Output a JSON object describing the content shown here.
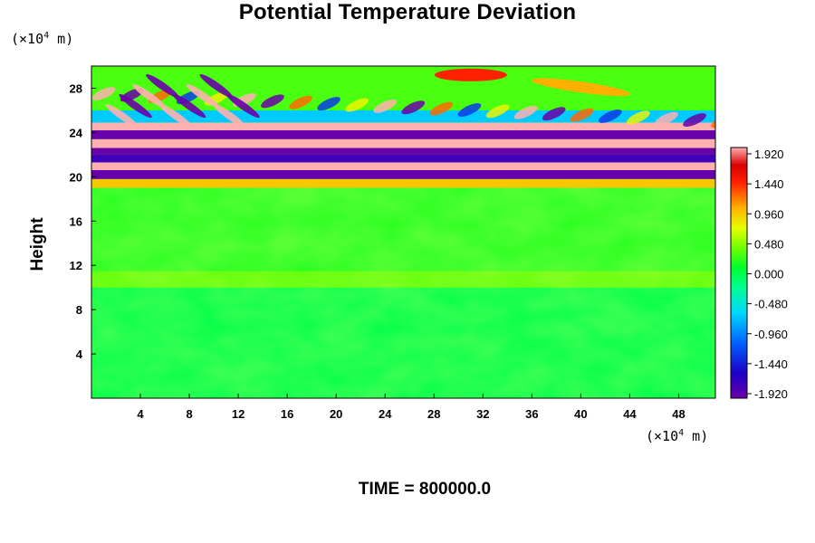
{
  "chart_data": {
    "type": "heatmap",
    "title": "Potential Temperature Deviation",
    "ylabel": "Height",
    "xlabel": "",
    "x_unit": {
      "prefix": "(×10",
      "exp": "4",
      "suffix": " m)"
    },
    "y_unit": {
      "prefix": "(×10",
      "exp": "4",
      "suffix": " m)"
    },
    "xlim": [
      0,
      51
    ],
    "ylim": [
      0,
      30
    ],
    "x_ticks": [
      4,
      8,
      12,
      16,
      20,
      24,
      28,
      32,
      36,
      40,
      44,
      48
    ],
    "y_ticks": [
      4,
      8,
      12,
      16,
      20,
      24,
      28
    ],
    "footer": "TIME = 800000.0",
    "colorbar": {
      "min": -1.92,
      "max": 1.92,
      "labels": [
        "1.920",
        "1.440",
        "0.960",
        "0.480",
        "0.000",
        "-0.480",
        "-0.960",
        "-1.440",
        "-1.920"
      ]
    },
    "field_description": [
      {
        "y_range": [
          0,
          10
        ],
        "value_approx": 0.0
      },
      {
        "y_range": [
          10,
          19
        ],
        "value_approx": 0.1
      },
      {
        "y_range": [
          19,
          26
        ],
        "value_approx": "alternating bands ±1.92"
      },
      {
        "y_range": [
          26,
          30
        ],
        "value_approx": "wave pattern, peaks ≈ 1.44"
      }
    ]
  }
}
